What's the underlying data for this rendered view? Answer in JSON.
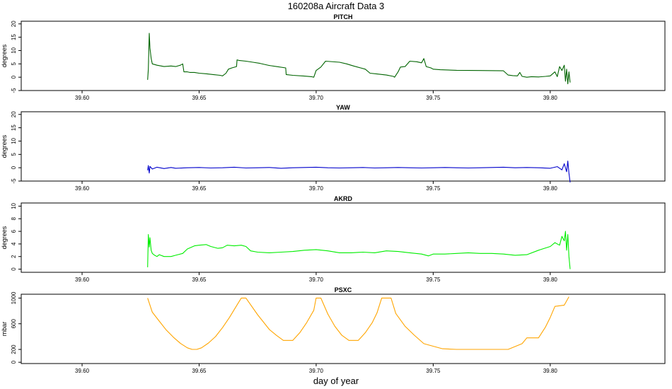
{
  "figure": {
    "title": "160208a   Aircraft Data 3",
    "xlabel": "day of year"
  },
  "chart_data": [
    {
      "type": "line",
      "title": "PITCH",
      "ylabel": "degrees",
      "color": "#006400",
      "xlim": [
        39.574,
        39.849
      ],
      "ylim": [
        -5,
        21
      ],
      "xticks": [
        "39.60",
        "39.65",
        "39.70",
        "39.75",
        "39.80"
      ],
      "yticks": [
        "-5",
        "0",
        "5",
        "10",
        "15",
        "20"
      ],
      "x": [
        39.628,
        39.6283,
        39.6287,
        39.629,
        39.6295,
        39.63,
        39.632,
        39.635,
        39.638,
        39.64,
        39.642,
        39.643,
        39.6435,
        39.645,
        39.646,
        39.648,
        39.65,
        39.653,
        39.656,
        39.659,
        39.66,
        39.6615,
        39.6625,
        39.664,
        39.666,
        39.6662,
        39.667,
        39.67,
        39.673,
        39.676,
        39.678,
        39.68,
        39.683,
        39.687,
        39.6872,
        39.69,
        39.695,
        39.698,
        39.699,
        39.7,
        39.702,
        39.704,
        39.71,
        39.713,
        39.716,
        39.719,
        39.721,
        39.723,
        39.726,
        39.73,
        39.733,
        39.7335,
        39.735,
        39.736,
        39.738,
        39.74,
        39.743,
        39.745,
        39.746,
        39.747,
        39.749,
        39.75,
        39.753,
        39.76,
        39.77,
        39.78,
        39.782,
        39.784,
        39.786,
        39.787,
        39.788,
        39.79,
        39.792,
        39.795,
        39.798,
        39.8,
        39.802,
        39.803,
        39.804,
        39.805,
        39.806,
        39.8065,
        39.807,
        39.8075,
        39.808,
        39.8085
      ],
      "y": [
        -1,
        3,
        16.5,
        11,
        7,
        5,
        4.5,
        4,
        4.2,
        4,
        4.5,
        5,
        2,
        2,
        1.8,
        1.8,
        1.5,
        1.3,
        1,
        0.7,
        0.5,
        1.5,
        3,
        3.5,
        4,
        6.5,
        6.3,
        6,
        5.6,
        5.2,
        4.8,
        4.4,
        4,
        3.5,
        1,
        0.7,
        0.4,
        0.2,
        0,
        2.5,
        3.8,
        6,
        5.6,
        5,
        4.2,
        3.5,
        3,
        1.5,
        1.2,
        0.8,
        0.3,
        0,
        2,
        3.8,
        4,
        6,
        5.8,
        5.4,
        7,
        4,
        3.5,
        3,
        2.8,
        2.6,
        2.5,
        2.4,
        0.8,
        0.6,
        0.5,
        1.8,
        0.3,
        0,
        0.2,
        0.1,
        0.3,
        0.5,
        2,
        0.2,
        4,
        2.5,
        4.5,
        -1.5,
        3,
        -2.5,
        2,
        -2
      ]
    },
    {
      "type": "line",
      "title": "YAW",
      "ylabel": "degrees",
      "color": "#0000cc",
      "xlim": [
        39.574,
        39.849
      ],
      "ylim": [
        -5,
        21
      ],
      "xticks": [
        "39.60",
        "39.65",
        "39.70",
        "39.75",
        "39.80"
      ],
      "yticks": [
        "-5",
        "0",
        "5",
        "10",
        "15",
        "20"
      ],
      "x": [
        39.628,
        39.6283,
        39.6287,
        39.629,
        39.63,
        39.632,
        39.635,
        39.638,
        39.64,
        39.645,
        39.65,
        39.655,
        39.66,
        39.665,
        39.67,
        39.675,
        39.68,
        39.685,
        39.69,
        39.695,
        39.7,
        39.705,
        39.71,
        39.715,
        39.72,
        39.725,
        39.73,
        39.735,
        39.74,
        39.745,
        39.75,
        39.755,
        39.76,
        39.765,
        39.77,
        39.775,
        39.78,
        39.785,
        39.79,
        39.795,
        39.8,
        39.803,
        39.805,
        39.806,
        39.807,
        39.8075,
        39.808,
        39.8085
      ],
      "y": [
        -1,
        0.8,
        -2,
        0.5,
        -0.5,
        0.2,
        -0.3,
        0.1,
        -0.2,
        0,
        0.1,
        -0.1,
        0,
        0.2,
        -0.1,
        0,
        0.1,
        -0.2,
        0,
        0.1,
        0.2,
        0,
        -0.1,
        0,
        0.1,
        -0.1,
        0,
        0.1,
        0,
        -0.1,
        0,
        0.1,
        0,
        -0.1,
        0,
        0.1,
        0.2,
        0,
        0.1,
        0,
        -0.2,
        0.4,
        -0.8,
        1.5,
        -1.5,
        2.5,
        -2,
        -5.5
      ]
    },
    {
      "type": "line",
      "title": "AKRD",
      "ylabel": "degrees",
      "color": "#00ee00",
      "xlim": [
        39.574,
        39.849
      ],
      "ylim": [
        -0.5,
        10.5
      ],
      "xticks": [
        "39.60",
        "39.65",
        "39.70",
        "39.75",
        "39.80"
      ],
      "yticks": [
        "0",
        "2",
        "4",
        "6",
        "8",
        "10"
      ],
      "x": [
        39.628,
        39.6283,
        39.6287,
        39.629,
        39.6295,
        39.63,
        39.631,
        39.632,
        39.633,
        39.635,
        39.638,
        39.64,
        39.643,
        39.645,
        39.648,
        39.65,
        39.653,
        39.655,
        39.658,
        39.66,
        39.662,
        39.665,
        39.668,
        39.67,
        39.672,
        39.675,
        39.68,
        39.685,
        39.69,
        39.695,
        39.7,
        39.705,
        39.71,
        39.715,
        39.72,
        39.725,
        39.73,
        39.735,
        39.74,
        39.745,
        39.748,
        39.75,
        39.755,
        39.76,
        39.765,
        39.77,
        39.775,
        39.78,
        39.785,
        39.79,
        39.795,
        39.8,
        39.802,
        39.804,
        39.805,
        39.806,
        39.8065,
        39.807,
        39.8075,
        39.808,
        39.8085
      ],
      "y": [
        0.3,
        5.5,
        3.5,
        5,
        3,
        2.5,
        2.2,
        2,
        2.3,
        2,
        2,
        2.2,
        2.5,
        3.2,
        3.7,
        3.8,
        3.9,
        3.6,
        3.3,
        3.4,
        3.8,
        3.7,
        3.8,
        3.6,
        2.9,
        2.7,
        2.6,
        2.7,
        2.8,
        3,
        3.1,
        2.9,
        2.6,
        2.6,
        2.7,
        2.6,
        2.9,
        2.8,
        2.6,
        2.4,
        2.1,
        2.4,
        2.4,
        2.5,
        2.6,
        2.5,
        2.5,
        2.4,
        2.2,
        2.3,
        3,
        3.6,
        4.2,
        3.8,
        5.2,
        4.5,
        6,
        3,
        5.5,
        2,
        0
      ]
    },
    {
      "type": "line",
      "title": "PSXC",
      "ylabel": "mbar",
      "color": "#ffa500",
      "xlim": [
        39.574,
        39.849
      ],
      "ylim": [
        -20,
        1060
      ],
      "xticks": [
        "39.60",
        "39.65",
        "39.70",
        "39.75",
        "39.80"
      ],
      "yticks": [
        "0",
        "200",
        "600",
        "1000"
      ],
      "x": [
        39.628,
        39.63,
        39.633,
        39.636,
        39.639,
        39.642,
        39.645,
        39.647,
        39.649,
        39.651,
        39.654,
        39.657,
        39.66,
        39.663,
        39.666,
        39.668,
        39.67,
        39.675,
        39.68,
        39.683,
        39.686,
        39.688,
        39.69,
        39.693,
        39.696,
        39.699,
        39.7,
        39.702,
        39.705,
        39.708,
        39.711,
        39.714,
        39.716,
        39.718,
        39.721,
        39.724,
        39.726,
        39.728,
        39.732,
        39.734,
        39.738,
        39.742,
        39.746,
        39.749,
        39.754,
        39.76,
        39.77,
        39.78,
        39.782,
        39.788,
        39.79,
        39.795,
        39.798,
        39.8,
        39.802,
        39.804,
        39.806,
        39.808
      ],
      "y": [
        1000,
        780,
        640,
        500,
        390,
        295,
        225,
        200,
        200,
        225,
        300,
        400,
        540,
        700,
        880,
        1000,
        1000,
        740,
        510,
        420,
        340,
        340,
        340,
        460,
        620,
        810,
        1000,
        1000,
        750,
        560,
        420,
        340,
        340,
        340,
        460,
        620,
        770,
        1000,
        1000,
        760,
        560,
        420,
        290,
        260,
        210,
        200,
        200,
        200,
        200,
        290,
        380,
        380,
        550,
        700,
        870,
        880,
        890,
        1020
      ]
    }
  ]
}
